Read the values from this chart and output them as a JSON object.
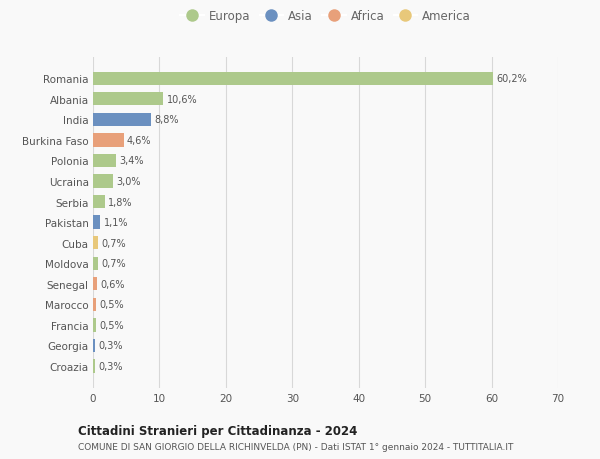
{
  "countries": [
    "Romania",
    "Albania",
    "India",
    "Burkina Faso",
    "Polonia",
    "Ucraina",
    "Serbia",
    "Pakistan",
    "Cuba",
    "Moldova",
    "Senegal",
    "Marocco",
    "Francia",
    "Georgia",
    "Croazia"
  ],
  "values": [
    60.2,
    10.6,
    8.8,
    4.6,
    3.4,
    3.0,
    1.8,
    1.1,
    0.7,
    0.7,
    0.6,
    0.5,
    0.5,
    0.3,
    0.3
  ],
  "labels": [
    "60,2%",
    "10,6%",
    "8,8%",
    "4,6%",
    "3,4%",
    "3,0%",
    "1,8%",
    "1,1%",
    "0,7%",
    "0,7%",
    "0,6%",
    "0,5%",
    "0,5%",
    "0,3%",
    "0,3%"
  ],
  "continents": [
    "Europa",
    "Europa",
    "Asia",
    "Africa",
    "Europa",
    "Europa",
    "Europa",
    "Asia",
    "America",
    "Europa",
    "Africa",
    "Africa",
    "Europa",
    "Asia",
    "Europa"
  ],
  "continent_colors": {
    "Europa": "#adc98b",
    "Asia": "#6b90c0",
    "Africa": "#e8a07a",
    "America": "#e8c87a"
  },
  "legend_order": [
    "Europa",
    "Asia",
    "Africa",
    "America"
  ],
  "title": "Cittadini Stranieri per Cittadinanza - 2024",
  "subtitle": "COMUNE DI SAN GIORGIO DELLA RICHINVELDA (PN) - Dati ISTAT 1° gennaio 2024 - TUTTITALIA.IT",
  "xlim": [
    0,
    70
  ],
  "xticks": [
    0,
    10,
    20,
    30,
    40,
    50,
    60,
    70
  ],
  "bg_color": "#f9f9f9",
  "grid_color": "#d8d8d8",
  "bar_height": 0.65
}
